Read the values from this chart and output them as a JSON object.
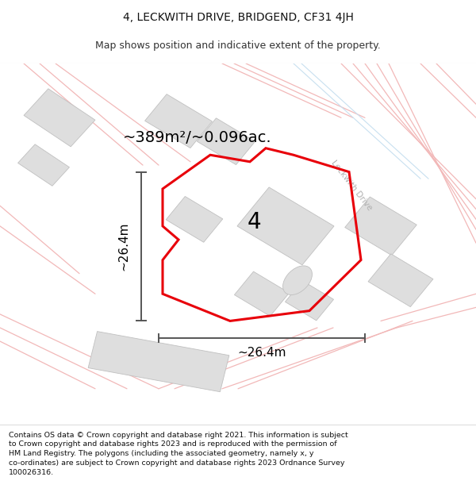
{
  "title_line1": "4, LECKWITH DRIVE, BRIDGEND, CF31 4JH",
  "title_line2": "Map shows position and indicative extent of the property.",
  "area_label": "~389m²/~0.096ac.",
  "number_label": "4",
  "dim_horiz": "~26.4m",
  "dim_vert": "~26.4m",
  "road_label": "Leckwith Drive",
  "footer_text": "Contains OS data © Crown copyright and database right 2021. This information is subject to Crown copyright and database rights 2023 and is reproduced with the permission of HM Land Registry. The polygons (including the associated geometry, namely x, y co-ordinates) are subject to Crown copyright and database rights 2023 Ordnance Survey 100026316.",
  "bg_color": "#ffffff",
  "map_bg_color": "#ffffff",
  "plot_color": "#e8000a",
  "building_color": "#dedede",
  "road_line_color": "#f2b8b8",
  "road_line_color2": "#c8e0f0",
  "dim_line_color": "#555555",
  "sep_color": "#dddddd",
  "title_fontsize": 10,
  "subtitle_fontsize": 9,
  "area_fontsize": 14,
  "number_fontsize": 20,
  "dim_fontsize": 11,
  "footer_fontsize": 6.8,
  "road_label_color": "#b0b0b0",
  "road_label_fontsize": 7.5
}
